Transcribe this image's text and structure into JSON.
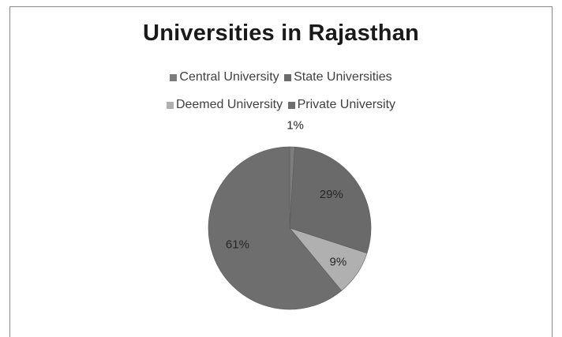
{
  "chart_data": {
    "type": "pie",
    "title": "Universities in Rajasthan",
    "categories": [
      "Central University",
      "State Universities",
      "Deemed University",
      "Private University"
    ],
    "values": [
      1,
      29,
      9,
      61
    ],
    "data_labels": [
      "1%",
      "29%",
      "9%",
      "61%"
    ],
    "colors": [
      "#7d7d7d",
      "#6a6a6a",
      "#b0b0b0",
      "#6e6e6e"
    ],
    "legend_position": "top"
  }
}
